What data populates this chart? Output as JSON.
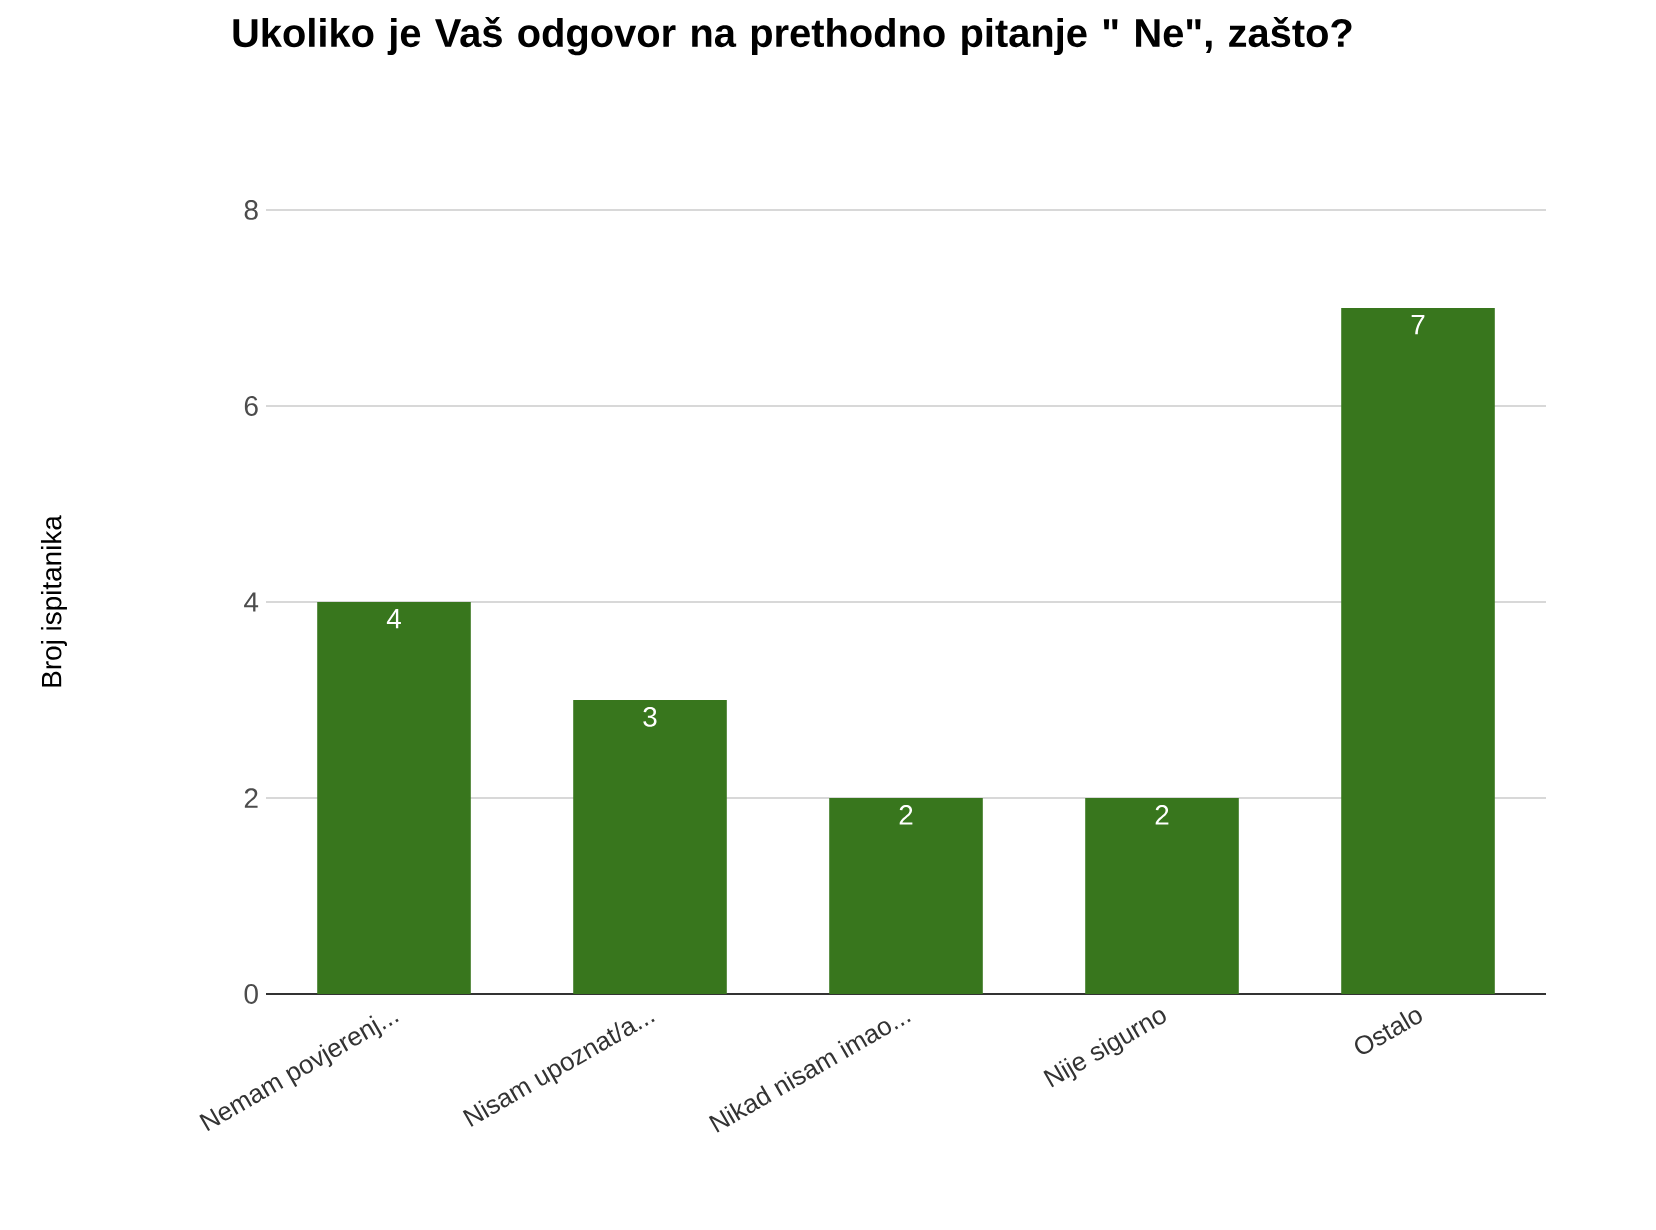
{
  "chart_data": {
    "type": "bar",
    "title": "Ukoliko je Vaš odgovor na prethodno pitanje \" Ne\", zašto?",
    "ylabel": "Broj ispitanika",
    "categories": [
      "Nemam povjerenj...",
      "Nisam upoznat/a...",
      "Nikad nisam imao...",
      "Nije sigurno",
      "Ostalo"
    ],
    "values": [
      4,
      3,
      2,
      2,
      7
    ],
    "color": "#38761d",
    "ylim": [
      0,
      8
    ],
    "yticks": [
      0,
      2,
      4,
      6,
      8
    ],
    "grid": "y",
    "data_labels": true
  }
}
